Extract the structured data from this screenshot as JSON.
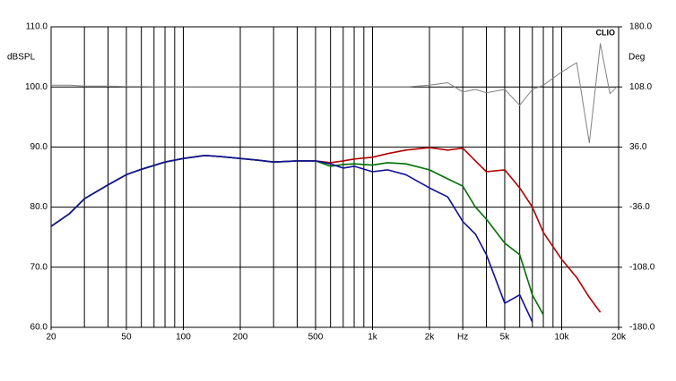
{
  "chart_data": {
    "type": "line",
    "annotation": "CLIO",
    "ylabel": "dBSPL",
    "y2label": "Deg",
    "xscale": "log",
    "grid": true,
    "x": [
      20,
      25,
      30,
      40,
      50,
      60,
      80,
      100,
      130,
      160,
      200,
      250,
      300,
      400,
      500,
      600,
      700,
      800,
      1000,
      1200,
      1500,
      2000,
      2500,
      3000,
      3500,
      4000,
      5000,
      6000,
      7000,
      8000,
      10000,
      12000,
      14000,
      16000,
      18000,
      20000
    ],
    "series": [
      {
        "color": "#b00000",
        "values": [
          76.8,
          78.9,
          81.4,
          83.7,
          85.4,
          86.3,
          87.5,
          88.1,
          88.6,
          88.4,
          88.1,
          87.8,
          87.5,
          87.7,
          87.7,
          87.4,
          87.7,
          88,
          88.3,
          88.9,
          89.5,
          89.9,
          89.5,
          89.8,
          87.7,
          85.9,
          86.2,
          83.2,
          80,
          75.8,
          71.3,
          68.3,
          65,
          62.5,
          null,
          null
        ]
      },
      {
        "color": "#007000",
        "values": [
          76.8,
          78.9,
          81.4,
          83.7,
          85.4,
          86.3,
          87.5,
          88.1,
          88.6,
          88.4,
          88.1,
          87.8,
          87.5,
          87.7,
          87.7,
          86.8,
          87.1,
          87.2,
          87,
          87.4,
          87.2,
          86.2,
          84.7,
          83.5,
          80,
          78,
          74,
          72.1,
          65.4,
          62.1,
          null,
          null,
          null,
          null,
          null,
          null
        ]
      },
      {
        "color": "#10109a",
        "values": [
          76.8,
          78.9,
          81.4,
          83.7,
          85.4,
          86.3,
          87.5,
          88.1,
          88.6,
          88.4,
          88.1,
          87.8,
          87.5,
          87.7,
          87.7,
          87.2,
          86.5,
          86.8,
          85.9,
          86.2,
          85.4,
          83.2,
          81.7,
          77.6,
          75.5,
          72.1,
          64,
          65.4,
          60.9,
          null,
          null,
          null,
          null,
          null,
          null,
          null
        ]
      },
      {
        "color": "#808080",
        "axis": "y2",
        "values": [
          110,
          110,
          109,
          109,
          108.5,
          108.5,
          108,
          108,
          108,
          108,
          108,
          108,
          108,
          108,
          108,
          108,
          108,
          108,
          108,
          108,
          108,
          110,
          113,
          102,
          105,
          101,
          105,
          86,
          105,
          110,
          126,
          137,
          41,
          160,
          100,
          110
        ]
      }
    ],
    "xlim": [
      20,
      20000
    ],
    "xticks": [
      20,
      50,
      100,
      200,
      500,
      {
        "value": 1000,
        "label": "1k"
      },
      {
        "value": 2000,
        "label": "2k"
      },
      {
        "value": 3000,
        "label": "Hz"
      },
      {
        "value": 5000,
        "label": "5k"
      },
      {
        "value": 10000,
        "label": "10k"
      },
      {
        "value": 20000,
        "label": "20k"
      }
    ],
    "xgrid": [
      20,
      30,
      40,
      50,
      60,
      70,
      80,
      90,
      100,
      200,
      300,
      400,
      500,
      600,
      700,
      800,
      900,
      1000,
      2000,
      3000,
      4000,
      5000,
      6000,
      7000,
      8000,
      9000,
      10000,
      20000
    ],
    "ylim": [
      60,
      110
    ],
    "yticks": [
      {
        "value": 60,
        "label": "60.0"
      },
      {
        "value": 70,
        "label": "70.0"
      },
      {
        "value": 80,
        "label": "80.0"
      },
      {
        "value": 90,
        "label": "90.0"
      },
      {
        "value": 100,
        "label": "100.0"
      },
      {
        "value": 110,
        "label": "110.0"
      }
    ],
    "y2lim": [
      -180,
      180
    ],
    "y2ticks": [
      {
        "value": -180,
        "label": "-180.0"
      },
      {
        "value": -108,
        "label": "-108.0"
      },
      {
        "value": -36,
        "label": "-36.0"
      },
      {
        "value": 36,
        "label": "36.0"
      },
      {
        "value": 108,
        "label": "108.0"
      },
      {
        "value": 180,
        "label": "180.0"
      }
    ]
  }
}
